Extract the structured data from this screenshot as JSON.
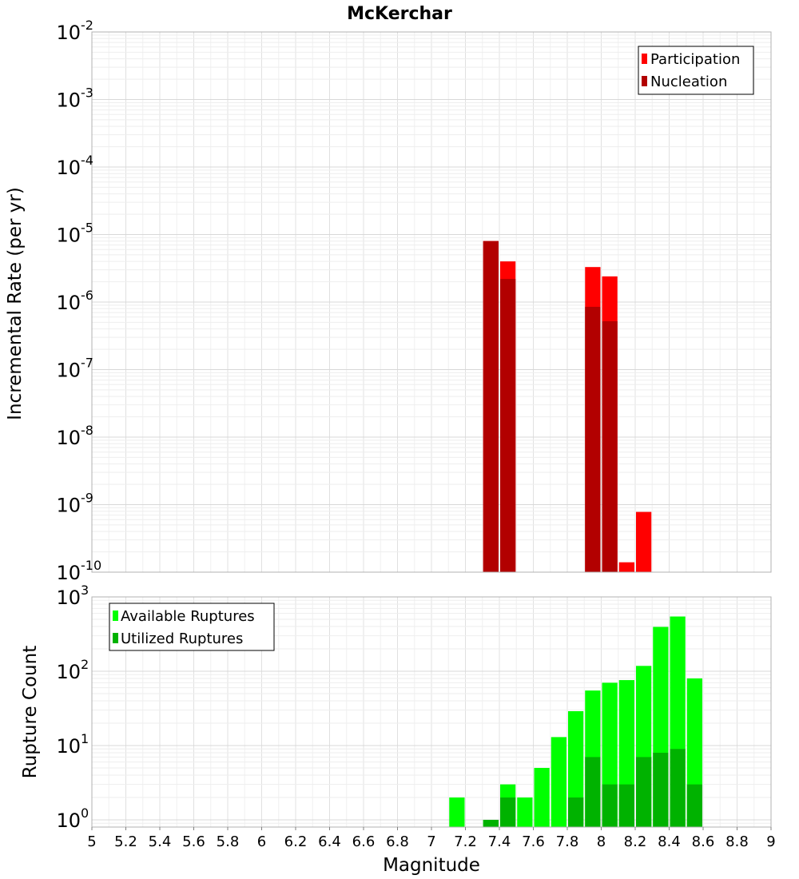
{
  "chart_data": [
    {
      "type": "bar",
      "title": "McKerchar",
      "xlabel": "Magnitude",
      "ylabel": "Incremental Rate (per yr)",
      "xlim": [
        5,
        9
      ],
      "ylim": [
        1e-10,
        0.01
      ],
      "yscale": "log",
      "grid": true,
      "legend_position": "top-right",
      "series": [
        {
          "name": "Participation",
          "color": "#ff0000",
          "x": [
            7.35,
            7.45,
            7.95,
            8.05,
            8.15,
            8.25
          ],
          "values": [
            8e-06,
            4e-06,
            3.3e-06,
            2.4e-06,
            1.4e-10,
            7.8e-10
          ]
        },
        {
          "name": "Nucleation",
          "color": "#b20000",
          "x": [
            7.35,
            7.45,
            7.95,
            8.05
          ],
          "values": [
            8e-06,
            2.2e-06,
            8.5e-07,
            5.2e-07
          ]
        }
      ]
    },
    {
      "type": "bar",
      "xlabel": "Magnitude",
      "ylabel": "Rupture Count",
      "xlim": [
        5,
        9
      ],
      "ylim": [
        0.8,
        1000
      ],
      "yscale": "log",
      "grid": true,
      "legend_position": "top-left",
      "series": [
        {
          "name": "Available Ruptures",
          "color": "#00ff00",
          "x": [
            7.15,
            7.35,
            7.45,
            7.55,
            7.65,
            7.75,
            7.85,
            7.95,
            8.05,
            8.15,
            8.25,
            8.35,
            8.45,
            8.55
          ],
          "values": [
            2,
            1,
            3,
            2,
            5,
            13,
            29,
            55,
            70,
            76,
            118,
            395,
            545,
            80
          ]
        },
        {
          "name": "Utilized Ruptures",
          "color": "#00b200",
          "x": [
            7.35,
            7.45,
            7.85,
            7.95,
            8.05,
            8.15,
            8.25,
            8.35,
            8.45,
            8.55
          ],
          "values": [
            1,
            2,
            2,
            7,
            3,
            3,
            7,
            8,
            9,
            3
          ]
        }
      ]
    }
  ],
  "x_ticks": [
    "5",
    "5.2",
    "5.4",
    "5.6",
    "5.8",
    "6",
    "6.2",
    "6.4",
    "6.6",
    "6.8",
    "7",
    "7.2",
    "7.4",
    "7.6",
    "7.8",
    "8",
    "8.2",
    "8.4",
    "8.6",
    "8.8",
    "9"
  ],
  "top_y_ticks": [
    {
      "base": "10",
      "exp": "-2"
    },
    {
      "base": "10",
      "exp": "-3"
    },
    {
      "base": "10",
      "exp": "-4"
    },
    {
      "base": "10",
      "exp": "-5"
    },
    {
      "base": "10",
      "exp": "-6"
    },
    {
      "base": "10",
      "exp": "-7"
    },
    {
      "base": "10",
      "exp": "-8"
    },
    {
      "base": "10",
      "exp": "-9"
    },
    {
      "base": "10",
      "exp": "-10"
    }
  ],
  "bottom_y_ticks": [
    {
      "base": "10",
      "exp": "3"
    },
    {
      "base": "10",
      "exp": "2"
    },
    {
      "base": "10",
      "exp": "1"
    },
    {
      "base": "10",
      "exp": "0"
    }
  ]
}
